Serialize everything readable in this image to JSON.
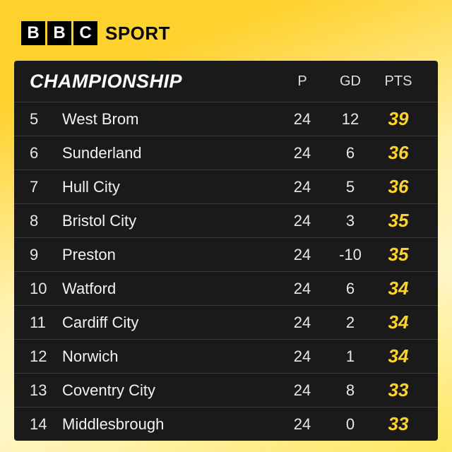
{
  "brand": {
    "b1": "B",
    "b2": "B",
    "b3": "C",
    "word": "SPORT"
  },
  "accent": "#ffd230",
  "table": {
    "title": "CHAMPIONSHIP",
    "columns": {
      "p": "P",
      "gd": "GD",
      "pts": "PTS"
    },
    "rows": [
      {
        "pos": "5",
        "team": "West Brom",
        "p": "24",
        "gd": "12",
        "pts": "39"
      },
      {
        "pos": "6",
        "team": "Sunderland",
        "p": "24",
        "gd": "6",
        "pts": "36"
      },
      {
        "pos": "7",
        "team": "Hull City",
        "p": "24",
        "gd": "5",
        "pts": "36"
      },
      {
        "pos": "8",
        "team": "Bristol City",
        "p": "24",
        "gd": "3",
        "pts": "35"
      },
      {
        "pos": "9",
        "team": "Preston",
        "p": "24",
        "gd": "-10",
        "pts": "35"
      },
      {
        "pos": "10",
        "team": "Watford",
        "p": "24",
        "gd": "6",
        "pts": "34"
      },
      {
        "pos": "11",
        "team": "Cardiff City",
        "p": "24",
        "gd": "2",
        "pts": "34"
      },
      {
        "pos": "12",
        "team": "Norwich",
        "p": "24",
        "gd": "1",
        "pts": "34"
      },
      {
        "pos": "13",
        "team": "Coventry City",
        "p": "24",
        "gd": "8",
        "pts": "33"
      },
      {
        "pos": "14",
        "team": "Middlesbrough",
        "p": "24",
        "gd": "0",
        "pts": "33"
      }
    ]
  }
}
